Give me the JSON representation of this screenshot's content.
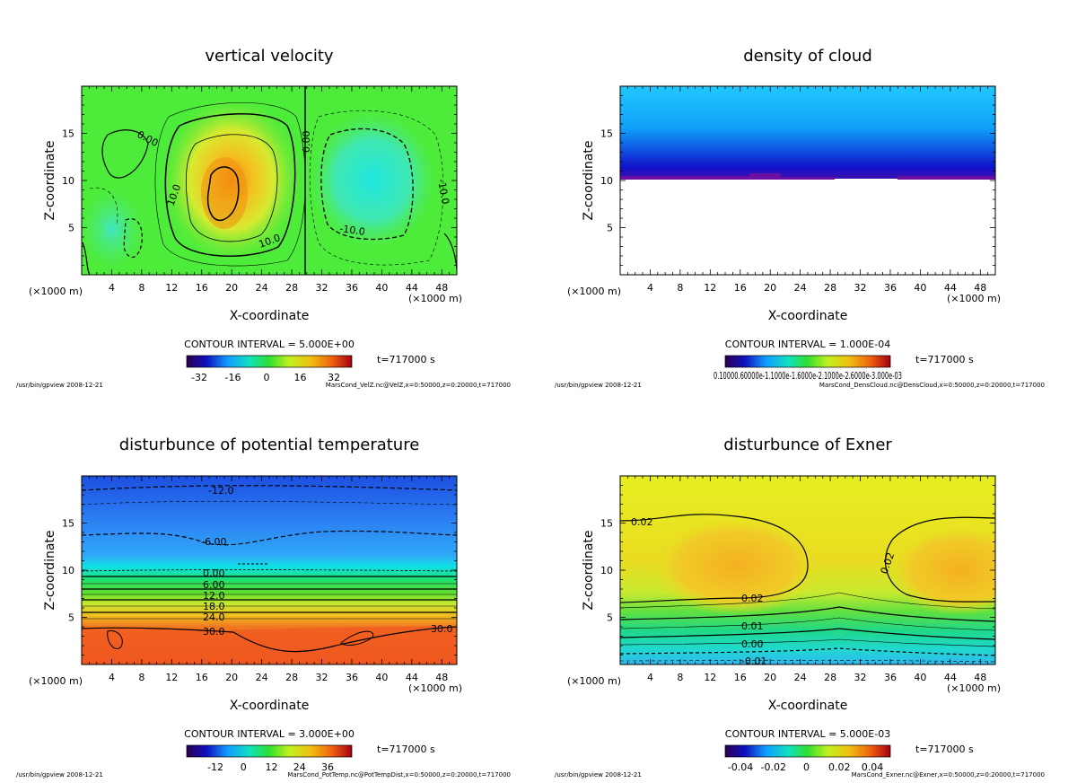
{
  "footer_left": "/usr/bin/gpview   2008-12-21",
  "unit_left": "(×1000 m)",
  "unit_right": "(×1000 m)",
  "chart_data": [
    {
      "type": "heatmap",
      "title": "vertical velocity",
      "xlabel": "X-coordinate",
      "ylabel": "Z-coordinate",
      "x_ticks": [
        "4",
        "8",
        "12",
        "16",
        "20",
        "24",
        "28",
        "32",
        "36",
        "40",
        "44",
        "48"
      ],
      "y_ticks": [
        "5",
        "10",
        "15"
      ],
      "xlim": [
        0,
        50
      ],
      "ylim": [
        0,
        20
      ],
      "contour_interval": "CONTOUR INTERVAL = 5.000E+00",
      "time_label": "t=717000 s",
      "colorbar_ticks": [
        "-32",
        "-16",
        "0",
        "16",
        "32"
      ],
      "contour_labels": [
        "0.00",
        "10.0",
        "10.0",
        "0.00",
        "-10.0",
        "-10.0"
      ],
      "source": "MarsCond_VelZ.nc@VelZ,x=0:50000,z=0:20000,t=717000",
      "colors": {
        "background": "#4dec3a",
        "accent": "#f0a020"
      }
    },
    {
      "type": "heatmap",
      "title": "density of cloud",
      "xlabel": "X-coordinate",
      "ylabel": "Z-coordinate",
      "x_ticks": [
        "4",
        "8",
        "12",
        "16",
        "20",
        "24",
        "28",
        "32",
        "36",
        "40",
        "44",
        "48"
      ],
      "y_ticks": [
        "5",
        "10",
        "15"
      ],
      "xlim": [
        0,
        50
      ],
      "ylim": [
        0,
        20
      ],
      "contour_interval": "CONTOUR INTERVAL = 1.000E-04",
      "time_label": "t=717000 s",
      "colorbar_ticks": [
        "0.1000",
        "0.6000",
        "1.100",
        "1.600",
        "2.100",
        "2.600",
        "3.000e-03"
      ],
      "colorbar_ticks_raw": "0.10000.60000e-1.1000e-1.6000e-2.1000e-2.6000e-3.000e-03",
      "contour_labels": [],
      "source": "MarsCond_DensCloud.nc@DensCloud,x=0:50000,z=0:20000,t=717000",
      "colors": {
        "top": "#1ab8ff",
        "base": "#6a0fa0"
      }
    },
    {
      "type": "heatmap",
      "title": "disturbunce of potential temperature",
      "xlabel": "X-coordinate",
      "ylabel": "Z-coordinate",
      "x_ticks": [
        "4",
        "8",
        "12",
        "16",
        "20",
        "24",
        "28",
        "32",
        "36",
        "40",
        "44",
        "48"
      ],
      "y_ticks": [
        "5",
        "10",
        "15"
      ],
      "xlim": [
        0,
        50
      ],
      "ylim": [
        0,
        20
      ],
      "contour_interval": "CONTOUR INTERVAL = 3.000E+00",
      "time_label": "t=717000 s",
      "colorbar_ticks": [
        "-12",
        "0",
        "12",
        "24",
        "36"
      ],
      "contour_labels": [
        "-12.0",
        "-6.00",
        "0.00",
        "6.00",
        "12.0",
        "18.0",
        "24.0",
        "30.0",
        "30.0"
      ],
      "source": "MarsCond_PotTemp.nc@PotTempDist,x=0:50000,z=0:20000,t=717000",
      "colors": {
        "top": "#1e5ae6",
        "bottom": "#f05020"
      }
    },
    {
      "type": "heatmap",
      "title": "disturbunce of Exner",
      "xlabel": "X-coordinate",
      "ylabel": "Z-coordinate",
      "x_ticks": [
        "4",
        "8",
        "12",
        "16",
        "20",
        "24",
        "28",
        "32",
        "36",
        "40",
        "44",
        "48"
      ],
      "y_ticks": [
        "5",
        "10",
        "15"
      ],
      "xlim": [
        0,
        50
      ],
      "ylim": [
        0,
        20
      ],
      "contour_interval": "CONTOUR INTERVAL = 5.000E-03",
      "time_label": "t=717000 s",
      "colorbar_ticks": [
        "-0.04",
        "-0.02",
        "0",
        "0.02",
        "0.04"
      ],
      "contour_labels": [
        "0.02",
        "0.02",
        "0.02",
        "0.01",
        "0.00",
        "-0.01"
      ],
      "source": "MarsCond_Exner.nc@Exner,x=0:50000,z=0:20000,t=717000",
      "colors": {
        "background": "#e6f020",
        "warm": "#f5b020"
      }
    }
  ]
}
